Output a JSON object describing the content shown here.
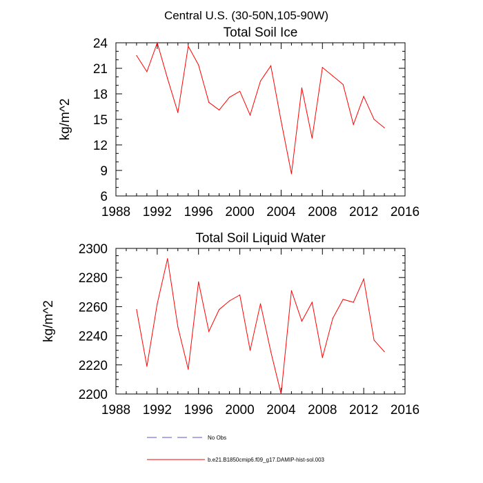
{
  "figure": {
    "suptitle": "Central U.S. (30-50N,105-90W)"
  },
  "legend": {
    "entries": [
      {
        "label": "No Obs",
        "color": "#5555cc",
        "style": "dashed"
      },
      {
        "label": "b.e21.B1850cmip6.f09_g17.DAMIP-hist-sol.003",
        "color": "#ff0000",
        "style": "solid"
      }
    ]
  },
  "chart_data": [
    {
      "type": "line",
      "title": "Total Soil Ice",
      "xlabel": "",
      "ylabel": "kg/m^2",
      "xlim": [
        1988,
        2016
      ],
      "ylim": [
        6,
        24
      ],
      "xticks": [
        "1988",
        "1992",
        "1996",
        "2000",
        "2004",
        "2008",
        "2012",
        "2016"
      ],
      "yticks": [
        "6",
        "9",
        "12",
        "15",
        "18",
        "21",
        "24"
      ],
      "series": [
        {
          "color": "#ff0000",
          "x": [
            1990,
            1991,
            1992,
            1993,
            1994,
            1995,
            1996,
            1997,
            1998,
            1999,
            2000,
            2001,
            2002,
            2003,
            2004,
            2005,
            2006,
            2007,
            2008,
            2009,
            2010,
            2011,
            2012,
            2013,
            2014
          ],
          "y": [
            22.5,
            20.6,
            24.0,
            19.8,
            15.8,
            23.6,
            21.4,
            17.0,
            16.1,
            17.6,
            18.3,
            15.5,
            19.5,
            21.3,
            14.8,
            8.6,
            18.7,
            12.8,
            21.1,
            20.1,
            19.1,
            14.4,
            17.7,
            15.0,
            14.0
          ]
        }
      ]
    },
    {
      "type": "line",
      "title": "Total Soil Liquid Water",
      "xlabel": "",
      "ylabel": "kg/m^2",
      "xlim": [
        1988,
        2016
      ],
      "ylim": [
        2200,
        2300
      ],
      "xticks": [
        "1988",
        "1992",
        "1996",
        "2000",
        "2004",
        "2008",
        "2012",
        "2016"
      ],
      "yticks": [
        "2200",
        "2220",
        "2240",
        "2260",
        "2280",
        "2300"
      ],
      "series": [
        {
          "color": "#ff0000",
          "x": [
            1990,
            1991,
            1992,
            1993,
            1994,
            1995,
            1996,
            1997,
            1998,
            1999,
            2000,
            2001,
            2002,
            2003,
            2004,
            2005,
            2006,
            2007,
            2008,
            2009,
            2010,
            2011,
            2012,
            2013,
            2014
          ],
          "y": [
            2258,
            2219,
            2262,
            2293,
            2246,
            2217,
            2277,
            2243,
            2258,
            2264,
            2268,
            2230,
            2262,
            2229,
            2200,
            2271,
            2250,
            2263,
            2225,
            2252,
            2265,
            2263,
            2279,
            2237,
            2229
          ]
        }
      ]
    }
  ]
}
